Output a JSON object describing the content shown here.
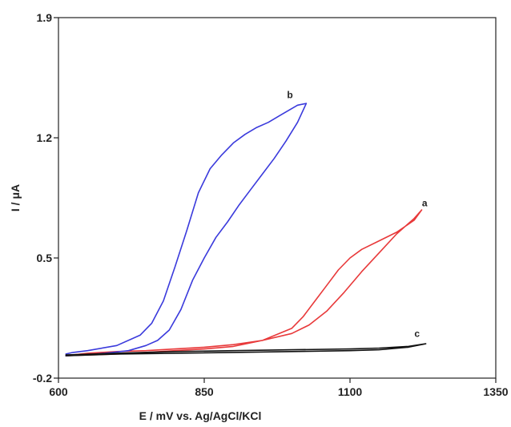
{
  "chart_data": {
    "type": "line",
    "title": "",
    "xlabel": "E / mV vs. Ag/AgCl/KCl",
    "ylabel": "I / μA",
    "xlim": [
      600,
      1350
    ],
    "ylim": [
      -0.2,
      1.9
    ],
    "xticks": [
      600,
      850,
      1100,
      1350
    ],
    "yticks": [
      -0.2,
      0.5,
      1.2,
      1.9
    ],
    "xtick_labels": [
      "600",
      "850",
      "1100",
      "1350"
    ],
    "ytick_labels": [
      "-0.2",
      "0.5",
      "1.2",
      "1.9"
    ],
    "grid": false,
    "legend": "none",
    "series": [
      {
        "name": "a",
        "color": "#e8393a",
        "x": [
          612,
          650,
          700,
          750,
          800,
          850,
          900,
          950,
          1000,
          1030,
          1060,
          1090,
          1120,
          1150,
          1180,
          1210,
          1223,
          1210,
          1180,
          1150,
          1120,
          1100,
          1080,
          1060,
          1040,
          1020,
          1000,
          950,
          900,
          850,
          800,
          750,
          700,
          650,
          612
        ],
        "y": [
          -0.07,
          -0.055,
          -0.045,
          -0.04,
          -0.03,
          -0.02,
          -0.005,
          0.02,
          0.06,
          0.11,
          0.19,
          0.3,
          0.42,
          0.53,
          0.64,
          0.73,
          0.78,
          0.72,
          0.65,
          0.6,
          0.55,
          0.5,
          0.43,
          0.34,
          0.25,
          0.16,
          0.09,
          0.02,
          -0.015,
          -0.03,
          -0.04,
          -0.05,
          -0.06,
          -0.065,
          -0.07
        ]
      },
      {
        "name": "b",
        "color": "#3a3adc",
        "x": [
          612,
          625,
          650,
          700,
          740,
          760,
          780,
          800,
          820,
          840,
          860,
          880,
          900,
          920,
          940,
          960,
          980,
          1000,
          1010,
          1025,
          1010,
          990,
          970,
          950,
          930,
          910,
          890,
          870,
          850,
          830,
          810,
          790,
          770,
          750,
          720,
          680,
          640,
          612
        ],
        "y": [
          -0.06,
          -0.05,
          -0.04,
          -0.01,
          0.05,
          0.12,
          0.25,
          0.45,
          0.66,
          0.88,
          1.02,
          1.1,
          1.17,
          1.22,
          1.26,
          1.29,
          1.33,
          1.37,
          1.39,
          1.4,
          1.29,
          1.18,
          1.08,
          0.99,
          0.9,
          0.81,
          0.71,
          0.62,
          0.5,
          0.37,
          0.2,
          0.08,
          0.02,
          -0.01,
          -0.04,
          -0.055,
          -0.065,
          -0.07
        ]
      },
      {
        "name": "c",
        "color": "#111111",
        "x": [
          612,
          700,
          800,
          900,
          1000,
          1100,
          1150,
          1200,
          1230,
          1200,
          1150,
          1100,
          1000,
          900,
          800,
          700,
          612
        ],
        "y": [
          -0.065,
          -0.055,
          -0.045,
          -0.04,
          -0.035,
          -0.03,
          -0.025,
          -0.015,
          0.0,
          -0.02,
          -0.035,
          -0.04,
          -0.045,
          -0.05,
          -0.055,
          -0.06,
          -0.07
        ]
      }
    ],
    "annotations": [
      {
        "text": "a",
        "x": 1228,
        "y": 0.8
      },
      {
        "text": "b",
        "x": 997,
        "y": 1.43
      },
      {
        "text": "c",
        "x": 1215,
        "y": 0.04
      }
    ]
  }
}
